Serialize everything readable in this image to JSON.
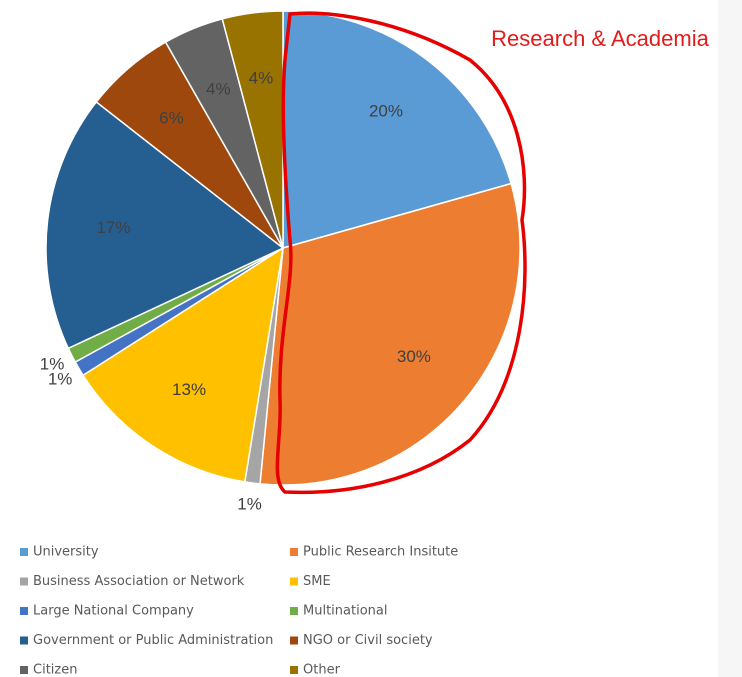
{
  "chart_data": {
    "type": "pie",
    "annotation": "Research & Academia",
    "categories": [
      "University",
      "Public Research Insitute",
      "Business Association or Network",
      "SME",
      "Large National Company",
      "Multinational",
      "Government or Public Administration",
      "NGO or Civil society",
      "Citizen",
      "Other"
    ],
    "values": [
      20,
      30,
      1,
      13,
      1,
      1,
      17,
      6,
      4,
      4
    ],
    "value_labels": [
      "20%",
      "30%",
      "1%",
      "13%",
      "1%",
      "1%",
      "17%",
      "6%",
      "4%",
      "4%"
    ],
    "colors": [
      "#5b9bd5",
      "#ed7d31",
      "#a5a5a5",
      "#ffc000",
      "#4472c4",
      "#70ad47",
      "#255e91",
      "#9e480e",
      "#636363",
      "#997300"
    ],
    "legend": "bottom"
  }
}
